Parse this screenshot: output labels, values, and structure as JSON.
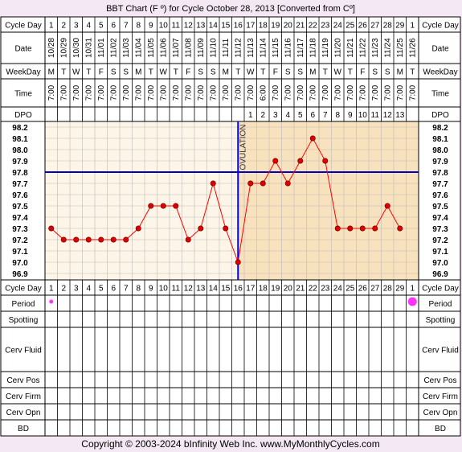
{
  "title": "BBT Chart (F º) for Cycle October 28, 2013  [Converted from Cº]",
  "copyright": "Copyright © 2003-2024 bInfinity Web Inc.    www.MyMonthlyCycles.com",
  "row_labels": {
    "cycle_day": "Cycle Day",
    "date": "Date",
    "weekday": "WeekDay",
    "time": "Time",
    "dpo": "DPO",
    "period": "Period",
    "spotting": "Spotting",
    "cerv_fluid": "Cerv Fluid",
    "cerv_pos": "Cerv Pos",
    "cerv_firm": "Cerv Firm",
    "cerv_opn": "Cerv Opn",
    "bd": "BD"
  },
  "cycle_days": [
    "1",
    "2",
    "3",
    "4",
    "5",
    "6",
    "7",
    "8",
    "9",
    "10",
    "11",
    "12",
    "13",
    "14",
    "15",
    "16",
    "17",
    "18",
    "19",
    "20",
    "21",
    "22",
    "23",
    "24",
    "25",
    "26",
    "27",
    "28",
    "29",
    "1"
  ],
  "dates": [
    "10/28",
    "10/29",
    "10/30",
    "10/31",
    "11/01",
    "11/02",
    "11/03",
    "11/04",
    "11/05",
    "11/06",
    "11/07",
    "11/08",
    "11/09",
    "11/10",
    "11/11",
    "11/12",
    "11/13",
    "11/14",
    "11/15",
    "11/16",
    "11/17",
    "11/18",
    "11/19",
    "11/20",
    "11/21",
    "11/22",
    "11/23",
    "11/24",
    "11/25",
    "11/26"
  ],
  "weekdays": [
    "M",
    "T",
    "W",
    "T",
    "F",
    "S",
    "S",
    "M",
    "T",
    "W",
    "T",
    "F",
    "S",
    "S",
    "M",
    "T",
    "W",
    "T",
    "F",
    "S",
    "S",
    "M",
    "T",
    "W",
    "T",
    "F",
    "S",
    "S",
    "M",
    "T"
  ],
  "times": [
    "7:00",
    "7:00",
    "7:00",
    "7:00",
    "7:00",
    "7:00",
    "7:00",
    "7:00",
    "7:00",
    "7:00",
    "7:00",
    "7:00",
    "7:00",
    "7:00",
    "7:00",
    "7:00",
    "7:00",
    "6:00",
    "7:00",
    "7:00",
    "7:00",
    "7:00",
    "7:00",
    "7:00",
    "7:00",
    "7:00",
    "7:00",
    "7:00",
    "7:00",
    "7:00"
  ],
  "dpo": [
    "",
    "",
    "",
    "",
    "",
    "",
    "",
    "",
    "",
    "",
    "",
    "",
    "",
    "",
    "",
    "",
    "1",
    "2",
    "3",
    "4",
    "5",
    "6",
    "7",
    "8",
    "9",
    "10",
    "11",
    "12",
    "13",
    ""
  ],
  "period_days": [
    1,
    30
  ],
  "ovulation_label": "OVULATION",
  "colors": {
    "line": "#ff0000",
    "marker": "#dd0000",
    "coverline": "#0000bb",
    "ovulation_line": "#0000ff",
    "pre_ovulation_bg": "#fdf6e8",
    "post_ovulation_bg": "#f8e2bd",
    "page_bg": "#f3e8f3",
    "period_marker": "#ff33ff"
  },
  "chart_data": {
    "type": "line",
    "x": [
      1,
      2,
      3,
      4,
      5,
      6,
      7,
      8,
      9,
      10,
      11,
      12,
      13,
      14,
      15,
      16,
      17,
      18,
      19,
      20,
      21,
      22,
      23,
      24,
      25,
      26,
      27,
      28,
      29
    ],
    "y": [
      97.3,
      97.2,
      97.2,
      97.2,
      97.2,
      97.2,
      97.2,
      97.3,
      97.5,
      97.5,
      97.5,
      97.2,
      97.3,
      97.7,
      97.3,
      97.0,
      97.7,
      97.7,
      97.9,
      97.7,
      97.9,
      98.1,
      97.9,
      97.3,
      97.3,
      97.3,
      97.3,
      97.5,
      97.3
    ],
    "ylim": [
      96.9,
      98.2
    ],
    "yticks": [
      "98.2",
      "98.1",
      "98.0",
      "97.9",
      "97.8",
      "97.7",
      "97.6",
      "97.5",
      "97.4",
      "97.3",
      "97.2",
      "97.1",
      "97.0",
      "96.9"
    ],
    "coverline": 97.8,
    "ovulation_day": 16,
    "grid": true
  }
}
